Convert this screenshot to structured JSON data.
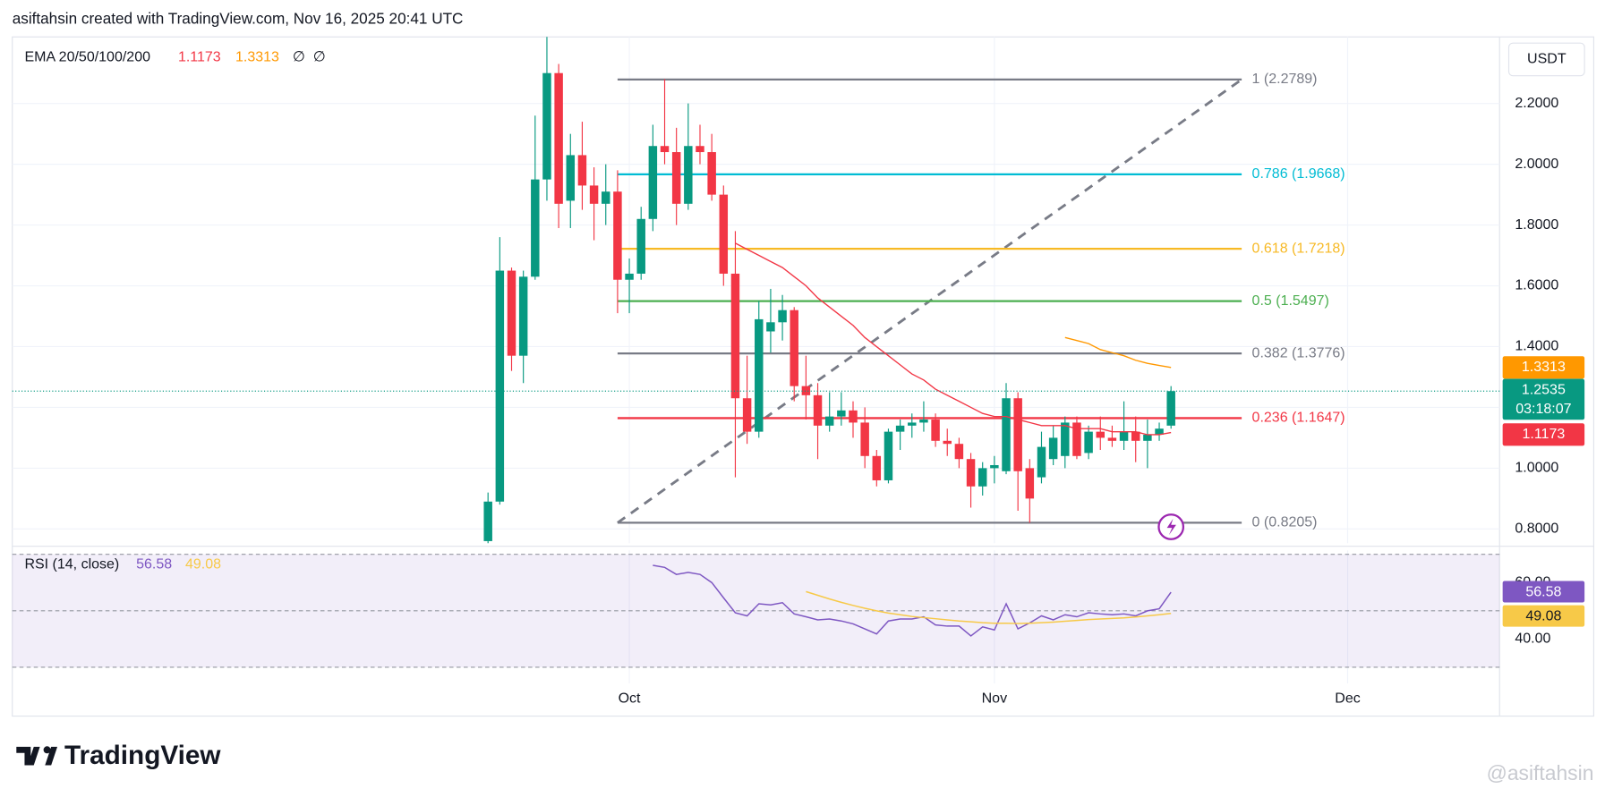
{
  "header": {
    "title": "asiftahsin created with TradingView.com, Nov 16, 2025 20:41 UTC",
    "logo": "TradingView",
    "watermark": "@asiftahsin"
  },
  "chart_data": {
    "type": "candlestick",
    "indicator_label": "EMA 20/50/100/200",
    "na_values": [
      "∅",
      "∅"
    ],
    "currency": "USDT",
    "countdown": "03:18:07",
    "up_color": "#089981",
    "down_color": "#f23645",
    "open": [
      0.76,
      0.89,
      1.65,
      1.37,
      1.63,
      1.95,
      2.3,
      1.88,
      2.03,
      1.93,
      1.87,
      1.91,
      1.62,
      1.64,
      1.82,
      2.06,
      2.04,
      1.87,
      2.06,
      2.04,
      1.9,
      1.64,
      1.23,
      1.12,
      1.45,
      1.48,
      1.52,
      1.27,
      1.24,
      1.14,
      1.17,
      1.19,
      1.15,
      1.04,
      0.96,
      1.12,
      1.14,
      1.15,
      1.16,
      1.09,
      1.08,
      1.03,
      0.94,
      1.0,
      0.99,
      1.23,
      1.0,
      0.97,
      1.03,
      1.04,
      1.15,
      1.05,
      1.12,
      1.1,
      1.09,
      1.12,
      1.09,
      1.11,
      1.14
    ],
    "high": [
      0.92,
      1.76,
      1.66,
      1.65,
      2.16,
      2.42,
      2.33,
      2.1,
      2.14,
      1.99,
      2.0,
      1.98,
      1.69,
      1.86,
      2.13,
      2.28,
      2.12,
      2.2,
      2.13,
      2.1,
      1.93,
      1.78,
      1.37,
      1.55,
      1.59,
      1.57,
      1.53,
      1.37,
      1.28,
      1.25,
      1.25,
      1.22,
      1.2,
      1.06,
      1.13,
      1.16,
      1.18,
      1.22,
      1.18,
      1.13,
      1.1,
      1.05,
      1.02,
      1.04,
      1.28,
      1.25,
      1.03,
      1.12,
      1.14,
      1.17,
      1.17,
      1.14,
      1.17,
      1.14,
      1.22,
      1.17,
      1.16,
      1.15,
      1.27
    ],
    "low": [
      0.72,
      0.88,
      1.32,
      1.28,
      1.62,
      1.88,
      1.79,
      1.79,
      1.85,
      1.75,
      1.8,
      1.51,
      1.51,
      1.62,
      1.78,
      2.0,
      1.8,
      1.85,
      2.0,
      1.88,
      1.6,
      0.97,
      1.08,
      1.1,
      1.38,
      1.42,
      1.22,
      1.16,
      1.03,
      1.12,
      1.14,
      1.1,
      1.0,
      0.94,
      0.95,
      1.06,
      1.1,
      1.12,
      1.07,
      1.04,
      1.0,
      0.87,
      0.91,
      0.95,
      0.98,
      0.86,
      0.82,
      0.95,
      1.01,
      1.0,
      1.03,
      1.03,
      1.06,
      1.07,
      1.06,
      1.02,
      1.0,
      1.09,
      1.13
    ],
    "close": [
      0.89,
      1.65,
      1.37,
      1.63,
      1.95,
      2.3,
      1.87,
      2.03,
      1.93,
      1.87,
      1.91,
      1.62,
      1.64,
      1.82,
      2.06,
      2.04,
      1.87,
      2.06,
      2.04,
      1.9,
      1.64,
      1.23,
      1.12,
      1.49,
      1.48,
      1.52,
      1.27,
      1.24,
      1.14,
      1.17,
      1.19,
      1.15,
      1.04,
      0.96,
      1.12,
      1.14,
      1.15,
      1.16,
      1.09,
      1.08,
      1.03,
      0.94,
      1.0,
      1.01,
      1.23,
      0.99,
      0.9,
      1.07,
      1.1,
      1.15,
      1.04,
      1.12,
      1.1,
      1.09,
      1.12,
      1.09,
      1.11,
      1.13,
      1.2535
    ],
    "series": [
      {
        "name": "EMA 20",
        "color": "#f23645",
        "values": [
          null,
          null,
          null,
          null,
          null,
          null,
          null,
          null,
          null,
          null,
          null,
          null,
          null,
          null,
          null,
          null,
          null,
          null,
          null,
          null,
          null,
          1.74,
          1.72,
          1.7,
          1.68,
          1.66,
          1.63,
          1.6,
          1.56,
          1.53,
          1.5,
          1.47,
          1.43,
          1.4,
          1.37,
          1.34,
          1.31,
          1.29,
          1.26,
          1.24,
          1.22,
          1.2,
          1.18,
          1.17,
          1.17,
          1.16,
          1.15,
          1.14,
          1.14,
          1.14,
          1.13,
          1.13,
          1.13,
          1.12,
          1.12,
          1.12,
          1.11,
          1.11,
          1.1173
        ]
      },
      {
        "name": "EMA 50",
        "color": "#ff9800",
        "values": [
          null,
          null,
          null,
          null,
          null,
          null,
          null,
          null,
          null,
          null,
          null,
          null,
          null,
          null,
          null,
          null,
          null,
          null,
          null,
          null,
          null,
          null,
          null,
          null,
          null,
          null,
          null,
          null,
          null,
          null,
          null,
          null,
          null,
          null,
          null,
          null,
          null,
          null,
          null,
          null,
          null,
          null,
          null,
          null,
          null,
          null,
          null,
          null,
          null,
          1.43,
          1.42,
          1.41,
          1.39,
          1.38,
          1.37,
          1.355,
          1.345,
          1.338,
          1.3313
        ]
      }
    ],
    "xlim": [
      -40.4,
      85.9
    ],
    "xticks": [
      {
        "value": 12,
        "label": "Oct"
      },
      {
        "value": 43,
        "label": "Nov"
      },
      {
        "value": 73,
        "label": "Dec"
      }
    ],
    "ylim": [
      0.753,
      2.419
    ],
    "yticks": [
      {
        "value": 0.8,
        "label": "0.8000"
      },
      {
        "value": 1.0,
        "label": "1.0000"
      },
      {
        "value": 1.2,
        "label": "1.2000"
      },
      {
        "value": 1.4,
        "label": "1.4000"
      },
      {
        "value": 1.6,
        "label": "1.6000"
      },
      {
        "value": 1.8,
        "label": "1.8000"
      },
      {
        "value": 2.0,
        "label": "2.0000"
      },
      {
        "value": 2.2,
        "label": "2.2000"
      }
    ],
    "grid": true,
    "fib_levels": [
      {
        "value": 2.2789,
        "label": "1 (2.2789)",
        "color": "#787b86"
      },
      {
        "value": 1.9668,
        "label": "0.786 (1.9668)",
        "color": "#00bcd4"
      },
      {
        "value": 1.7218,
        "label": "0.618 (1.7218)",
        "color": "#f7b924"
      },
      {
        "value": 1.5497,
        "label": "0.5 (1.5497)",
        "color": "#4caf50"
      },
      {
        "value": 1.3776,
        "label": "0.382 (1.3776)",
        "color": "#787b86"
      },
      {
        "value": 1.1647,
        "label": "0.236 (1.1647)",
        "color": "#f23645"
      },
      {
        "value": 0.8205,
        "label": "0 (0.8205)",
        "color": "#787b86"
      }
    ],
    "rsi": {
      "label": "RSI (14, close)",
      "ylim": [
        24.3,
        71.4
      ],
      "yticks": [
        {
          "value": 60,
          "label": "60.00"
        },
        {
          "value": 40,
          "label": "40.00"
        }
      ],
      "band_lines": [
        70,
        50,
        30
      ],
      "series": [
        {
          "name": "RSI",
          "color": "#7e57c2",
          "values": [
            null,
            null,
            null,
            null,
            null,
            null,
            null,
            null,
            null,
            null,
            null,
            null,
            null,
            null,
            66.1,
            65.4,
            62.9,
            63.6,
            62.9,
            60.0,
            54.6,
            49.3,
            48.2,
            52.5,
            52.1,
            52.9,
            48.9,
            47.9,
            46.8,
            47.1,
            46.4,
            45.4,
            43.6,
            41.8,
            46.4,
            47.1,
            47.1,
            47.9,
            45.0,
            44.6,
            44.6,
            41.1,
            44.3,
            43.2,
            52.5,
            43.6,
            45.7,
            48.2,
            46.8,
            48.6,
            47.9,
            49.3,
            48.9,
            48.6,
            48.9,
            48.2,
            50.0,
            50.7,
            56.58
          ]
        },
        {
          "name": "RSI MA",
          "color": "#f7c948",
          "values": [
            null,
            null,
            null,
            null,
            null,
            null,
            null,
            null,
            null,
            null,
            null,
            null,
            null,
            null,
            null,
            null,
            null,
            null,
            null,
            null,
            null,
            null,
            null,
            null,
            null,
            null,
            null,
            56.8,
            55.5,
            54.2,
            53.0,
            51.9,
            50.9,
            50.0,
            49.2,
            48.6,
            48.0,
            47.6,
            47.2,
            46.8,
            46.4,
            46.1,
            45.8,
            45.6,
            45.6,
            45.5,
            45.6,
            45.8,
            46.0,
            46.3,
            46.6,
            46.9,
            47.1,
            47.3,
            47.5,
            47.8,
            48.2,
            48.6,
            49.08
          ]
        }
      ]
    }
  }
}
